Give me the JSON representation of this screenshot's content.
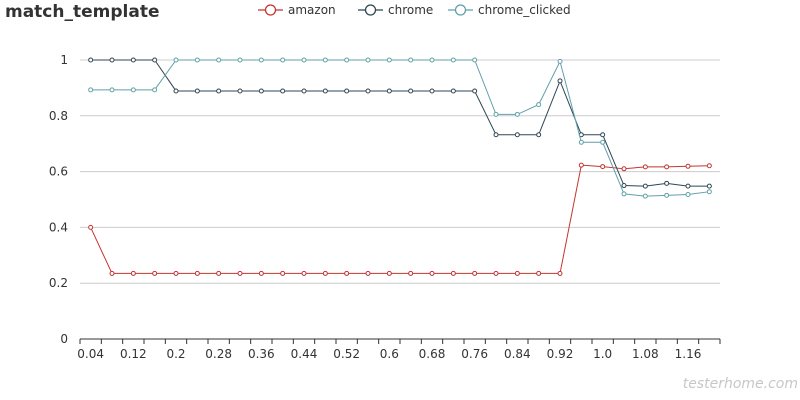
{
  "chart_data": {
    "type": "line",
    "title": "match_template",
    "xlabel": "",
    "ylabel": "",
    "ylim": [
      0,
      1
    ],
    "yticks": [
      0,
      0.2,
      0.4,
      0.6,
      0.8,
      1
    ],
    "grid": true,
    "legend_position": "top-center",
    "x": [
      0.04,
      0.08,
      0.12,
      0.16,
      0.2,
      0.24,
      0.28,
      0.32,
      0.36,
      0.4,
      0.44,
      0.48,
      0.52,
      0.56,
      0.6,
      0.64,
      0.68,
      0.72,
      0.76,
      0.8,
      0.84,
      0.88,
      0.92,
      0.96,
      1.0,
      1.04,
      1.08,
      1.12,
      1.16,
      1.2
    ],
    "x_tick_labels": [
      "0.04",
      "0.12",
      "0.2",
      "0.28",
      "0.36",
      "0.44",
      "0.52",
      "0.6",
      "0.68",
      "0.76",
      "0.84",
      "0.92",
      "1.0",
      "1.08",
      "1.16"
    ],
    "series": [
      {
        "name": "amazon",
        "color": "#c23531",
        "values": [
          0.4,
          0.235,
          0.235,
          0.235,
          0.235,
          0.235,
          0.235,
          0.235,
          0.235,
          0.235,
          0.235,
          0.235,
          0.235,
          0.235,
          0.235,
          0.235,
          0.235,
          0.235,
          0.235,
          0.235,
          0.235,
          0.235,
          0.235,
          0.623,
          0.618,
          0.61,
          0.617,
          0.617,
          0.619,
          0.621
        ]
      },
      {
        "name": "chrome",
        "color": "#2f4554",
        "values": [
          1.0,
          1.0,
          1.0,
          1.0,
          0.889,
          0.889,
          0.889,
          0.889,
          0.889,
          0.889,
          0.889,
          0.889,
          0.889,
          0.889,
          0.889,
          0.889,
          0.889,
          0.889,
          0.889,
          0.732,
          0.732,
          0.732,
          0.925,
          0.732,
          0.732,
          0.55,
          0.548,
          0.558,
          0.548,
          0.548
        ]
      },
      {
        "name": "chrome_clicked",
        "color": "#61a0a8",
        "values": [
          0.893,
          0.893,
          0.893,
          0.893,
          1.0,
          1.0,
          1.0,
          1.0,
          1.0,
          1.0,
          1.0,
          1.0,
          1.0,
          1.0,
          1.0,
          1.0,
          1.0,
          1.0,
          1.0,
          0.805,
          0.805,
          0.84,
          0.995,
          0.705,
          0.705,
          0.52,
          0.512,
          0.515,
          0.518,
          0.528
        ]
      }
    ]
  },
  "watermark": "testerhome.com"
}
